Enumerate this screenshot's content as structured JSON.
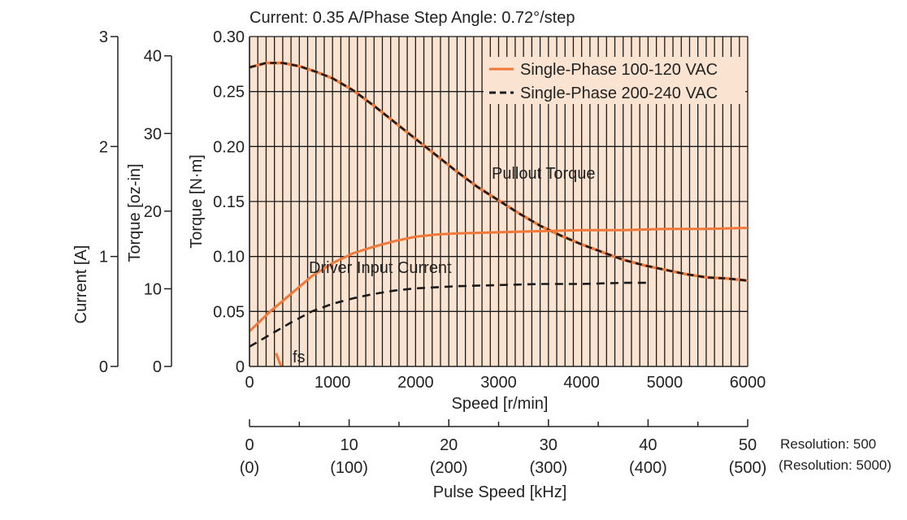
{
  "top_title": "Current: 0.35 A/Phase  Step Angle: 0.72°/step",
  "colors": {
    "background": "#fbe3d1",
    "grid": "#1a1a1a",
    "series_100_120": "#f07838",
    "series_200_240": "#1a1a1a"
  },
  "chart_data": {
    "type": "line",
    "title": "Current: 0.35 A/Phase  Step Angle: 0.72°/step",
    "xlabel": "Speed [r/min]",
    "ylabel": "Torque [N·m]",
    "xlim": [
      0,
      6000
    ],
    "ylim": [
      0,
      0.3
    ],
    "grid": true,
    "legend_position": "top-right",
    "x_ticks": [
      "0",
      "1000",
      "2000",
      "3000",
      "4000",
      "5000",
      "6000"
    ],
    "y_ticks": [
      "0",
      "0.05",
      "0.10",
      "0.15",
      "0.20",
      "0.25",
      "0.30"
    ],
    "secondary_y_axes": [
      {
        "label": "Torque [oz-in]",
        "ticks": [
          "0",
          "10",
          "20",
          "30",
          "40"
        ]
      },
      {
        "label": "Current [A]",
        "ticks": [
          "0",
          "1",
          "2",
          "3"
        ]
      }
    ],
    "secondary_x_axis": {
      "label": "Pulse Speed [kHz]",
      "ticks": [
        "0",
        "10",
        "20",
        "30",
        "40",
        "50"
      ],
      "ticks_alt": [
        "(0)",
        "(100)",
        "(200)",
        "(300)",
        "(400)",
        "(500)"
      ],
      "note_lines": [
        "Resolution: 500",
        "(Resolution: 5000)"
      ]
    },
    "legend": [
      "Single-Phase 100-120 VAC",
      "Single-Phase 200-240 VAC"
    ],
    "annotations": [
      "Pullout Torque",
      "Driver Input Current",
      "fs"
    ],
    "pullout_torque": {
      "x": [
        0,
        200,
        400,
        600,
        800,
        1000,
        1250,
        1500,
        1750,
        2000,
        2250,
        2500,
        2750,
        3000,
        3250,
        3500,
        3750,
        4000,
        4250,
        4500,
        4750,
        5000,
        5250,
        5500,
        5750,
        6000
      ],
      "y": [
        0.272,
        0.276,
        0.276,
        0.273,
        0.268,
        0.262,
        0.251,
        0.237,
        0.222,
        0.207,
        0.192,
        0.177,
        0.163,
        0.151,
        0.139,
        0.128,
        0.119,
        0.111,
        0.104,
        0.097,
        0.092,
        0.088,
        0.084,
        0.081,
        0.08,
        0.078
      ]
    },
    "series": [
      {
        "name": "Single-Phase 100-120 VAC",
        "driver_input_current_A": {
          "x": [
            0,
            250,
            500,
            750,
            1000,
            1250,
            1500,
            1750,
            2000,
            2250,
            2500,
            3000,
            3500,
            4000,
            4500,
            5000,
            5500,
            6000
          ],
          "y": [
            0.32,
            0.5,
            0.66,
            0.82,
            0.94,
            1.03,
            1.09,
            1.14,
            1.18,
            1.2,
            1.21,
            1.22,
            1.23,
            1.24,
            1.24,
            1.25,
            1.25,
            1.26
          ]
        }
      },
      {
        "name": "Single-Phase 200-240 VAC",
        "driver_input_current_A": {
          "x": [
            0,
            250,
            500,
            750,
            1000,
            1250,
            1500,
            1750,
            2000,
            2250,
            2500,
            3000,
            3500,
            4000,
            4500,
            4800
          ],
          "y": [
            0.18,
            0.29,
            0.4,
            0.5,
            0.57,
            0.62,
            0.66,
            0.69,
            0.71,
            0.72,
            0.73,
            0.74,
            0.75,
            0.75,
            0.76,
            0.76
          ]
        }
      }
    ],
    "fs_marker": {
      "x": [
        320,
        380
      ],
      "y": [
        0.012,
        0.0
      ]
    }
  }
}
